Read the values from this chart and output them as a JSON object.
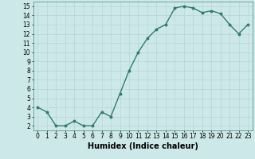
{
  "x": [
    0,
    1,
    2,
    3,
    4,
    5,
    6,
    7,
    8,
    9,
    10,
    11,
    12,
    13,
    14,
    15,
    16,
    17,
    18,
    19,
    20,
    21,
    22,
    23
  ],
  "y": [
    4.0,
    3.5,
    2.0,
    2.0,
    2.5,
    2.0,
    2.0,
    3.5,
    3.0,
    5.5,
    8.0,
    10.0,
    11.5,
    12.5,
    13.0,
    14.8,
    15.0,
    14.8,
    14.3,
    14.5,
    14.2,
    13.0,
    12.0,
    13.0
  ],
  "line_color": "#2e7d6e",
  "marker": "o",
  "markersize": 1.8,
  "linewidth": 1.0,
  "bg_color": "#cde8e8",
  "grid_color": "#b8d4d4",
  "xlabel": "Humidex (Indice chaleur)",
  "xlabel_fontsize": 7,
  "tick_fontsize": 5.5,
  "xlim": [
    -0.5,
    23.5
  ],
  "ylim": [
    1.5,
    15.5
  ],
  "yticks": [
    2,
    3,
    4,
    5,
    6,
    7,
    8,
    9,
    10,
    11,
    12,
    13,
    14,
    15
  ],
  "xticks": [
    0,
    1,
    2,
    3,
    4,
    5,
    6,
    7,
    8,
    9,
    10,
    11,
    12,
    13,
    14,
    15,
    16,
    17,
    18,
    19,
    20,
    21,
    22,
    23
  ]
}
